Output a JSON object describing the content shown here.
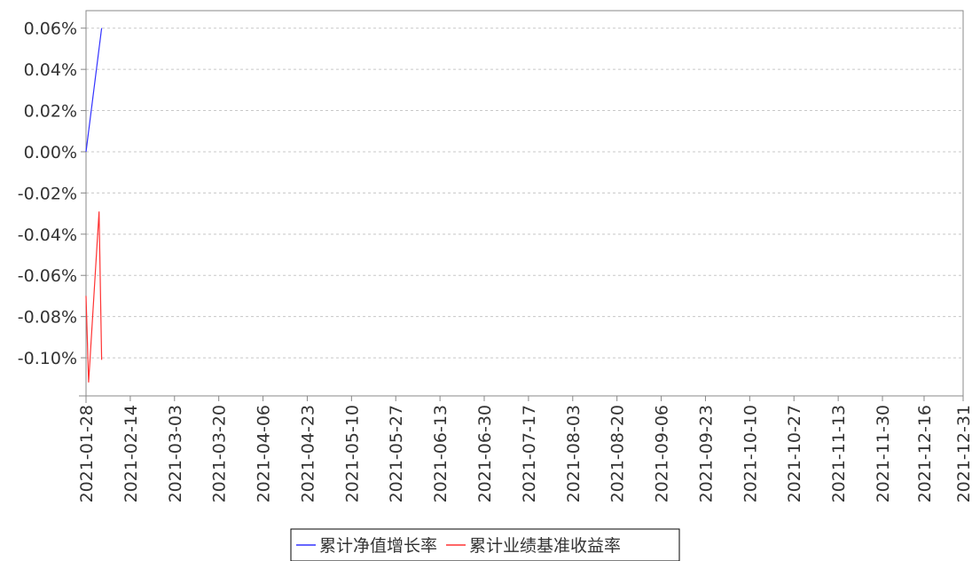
{
  "chart_data": {
    "type": "line",
    "title": "",
    "xlabel": "",
    "ylabel": "",
    "x_range": [
      "2021-01-28",
      "2021-12-31"
    ],
    "x_ticks": [
      "2021-01-28",
      "2021-02-14",
      "2021-03-03",
      "2021-03-20",
      "2021-04-06",
      "2021-04-23",
      "2021-05-10",
      "2021-05-27",
      "2021-06-13",
      "2021-06-30",
      "2021-07-17",
      "2021-08-03",
      "2021-08-20",
      "2021-09-06",
      "2021-09-23",
      "2021-10-10",
      "2021-10-27",
      "2021-11-13",
      "2021-11-30",
      "2021-12-16",
      "2021-12-31"
    ],
    "y_ticks": [
      0.06,
      0.04,
      0.02,
      0.0,
      -0.02,
      -0.04,
      -0.06,
      -0.08,
      -0.1
    ],
    "y_tick_labels": [
      "0.06%",
      "0.04%",
      "0.02%",
      "0.00%",
      "-0.02%",
      "-0.04%",
      "-0.06%",
      "-0.08%",
      "-0.10%"
    ],
    "ylim": [
      -0.1185,
      0.0685
    ],
    "grid": true,
    "legend_position": "bottom-center",
    "series": [
      {
        "name": "累计净值增长率",
        "color": "#3333ff",
        "points": [
          {
            "x": "2021-01-28",
            "y": 0.0
          },
          {
            "x": "2021-02-03",
            "y": 0.06
          }
        ]
      },
      {
        "name": "累计业绩基准收益率",
        "color": "#ff3333",
        "points": [
          {
            "x": "2021-01-28",
            "y": -0.07
          },
          {
            "x": "2021-01-29",
            "y": -0.112
          },
          {
            "x": "2021-02-02",
            "y": -0.029
          },
          {
            "x": "2021-02-03",
            "y": -0.101
          }
        ]
      }
    ]
  }
}
